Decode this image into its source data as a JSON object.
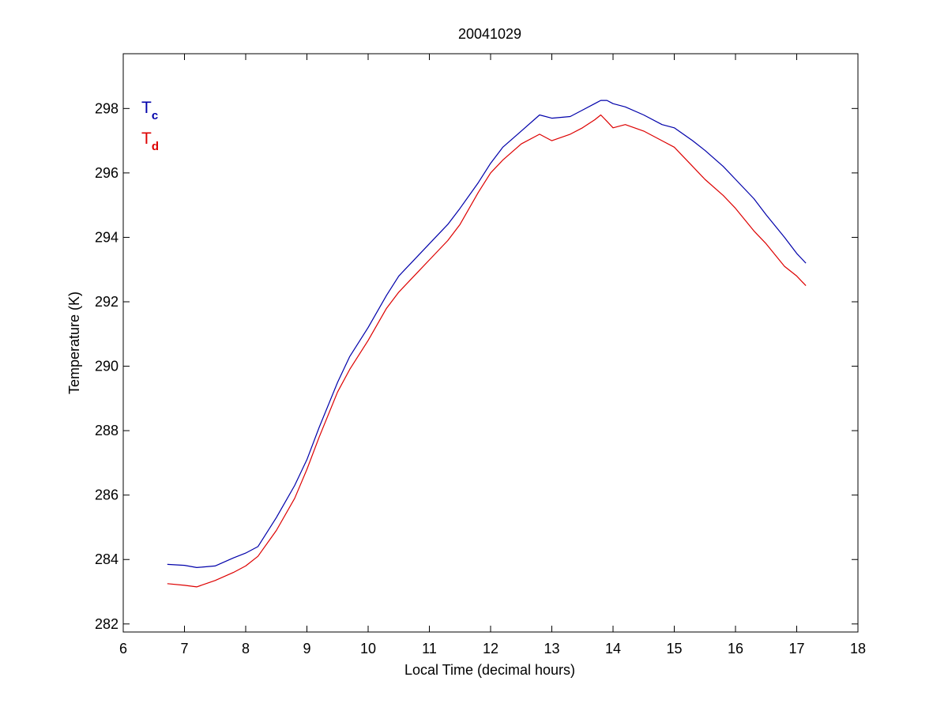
{
  "chart_data": {
    "type": "line",
    "title": "20041029",
    "xlabel": "Local Time (decimal hours)",
    "ylabel": "Temperature (K)",
    "xlim": [
      6,
      18
    ],
    "ylim": [
      281.75,
      299.7
    ],
    "xticks": [
      6,
      7,
      8,
      9,
      10,
      11,
      12,
      13,
      14,
      15,
      16,
      17,
      18
    ],
    "yticks": [
      282,
      284,
      286,
      288,
      290,
      292,
      294,
      296,
      298
    ],
    "grid": false,
    "legend_position": "top-left",
    "series": [
      {
        "name": "T",
        "subscript": "c",
        "color": "#0000aa",
        "x": [
          6.72,
          7.0,
          7.2,
          7.5,
          7.8,
          8.0,
          8.2,
          8.5,
          8.8,
          9.0,
          9.2,
          9.5,
          9.7,
          10.0,
          10.3,
          10.5,
          10.8,
          11.0,
          11.3,
          11.5,
          11.8,
          12.0,
          12.2,
          12.5,
          12.8,
          13.0,
          13.3,
          13.5,
          13.7,
          13.8,
          13.9,
          14.0,
          14.2,
          14.5,
          14.8,
          15.0,
          15.3,
          15.5,
          15.8,
          16.0,
          16.3,
          16.5,
          16.8,
          17.0,
          17.15
        ],
        "y": [
          283.85,
          283.82,
          283.75,
          283.8,
          284.05,
          284.2,
          284.4,
          285.3,
          286.3,
          287.1,
          288.1,
          289.5,
          290.3,
          291.2,
          292.2,
          292.8,
          293.4,
          293.8,
          294.4,
          294.9,
          295.7,
          296.3,
          296.8,
          297.3,
          297.8,
          297.7,
          297.75,
          297.95,
          298.15,
          298.25,
          298.25,
          298.15,
          298.05,
          297.8,
          297.5,
          297.4,
          297.0,
          296.7,
          296.2,
          295.8,
          295.2,
          294.7,
          294.0,
          293.5,
          293.2
        ]
      },
      {
        "name": "T",
        "subscript": "d",
        "color": "#dd0000",
        "x": [
          6.72,
          7.0,
          7.2,
          7.5,
          7.8,
          8.0,
          8.2,
          8.5,
          8.8,
          9.0,
          9.2,
          9.5,
          9.7,
          10.0,
          10.3,
          10.5,
          10.8,
          11.0,
          11.3,
          11.5,
          11.8,
          12.0,
          12.2,
          12.5,
          12.8,
          13.0,
          13.3,
          13.5,
          13.7,
          13.8,
          13.9,
          14.0,
          14.2,
          14.5,
          14.8,
          15.0,
          15.3,
          15.5,
          15.8,
          16.0,
          16.3,
          16.5,
          16.8,
          17.0,
          17.15
        ],
        "y": [
          283.25,
          283.2,
          283.15,
          283.35,
          283.6,
          283.8,
          284.1,
          284.9,
          285.9,
          286.8,
          287.8,
          289.2,
          289.9,
          290.8,
          291.8,
          292.3,
          292.9,
          293.3,
          293.9,
          294.4,
          295.4,
          296.0,
          296.4,
          296.9,
          297.2,
          297.0,
          297.2,
          297.4,
          297.65,
          297.8,
          297.6,
          297.4,
          297.5,
          297.3,
          297.0,
          296.8,
          296.2,
          295.8,
          295.3,
          294.9,
          294.2,
          293.8,
          293.1,
          292.8,
          292.5
        ]
      }
    ]
  }
}
